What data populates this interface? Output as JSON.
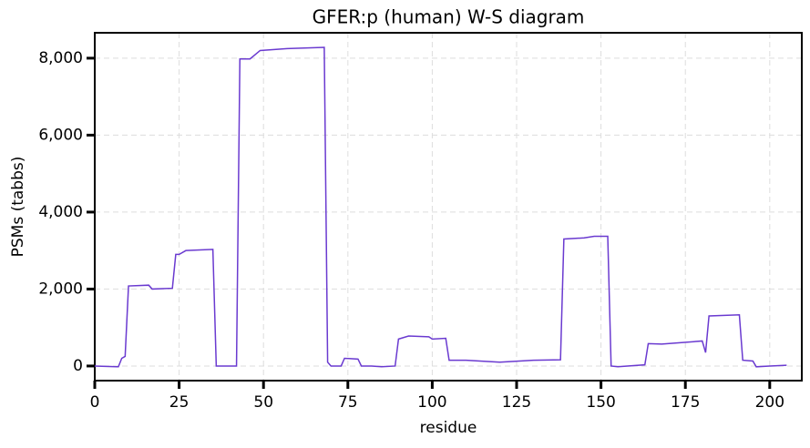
{
  "chart_data": {
    "type": "line",
    "title": "GFER:p (human) W-S diagram",
    "xlabel": "residue",
    "ylabel": "PSMs (tabbs)",
    "x": [
      0,
      7,
      8,
      9,
      10,
      16,
      17,
      23,
      24,
      25,
      27,
      35,
      36,
      42,
      43,
      46,
      49,
      57,
      68,
      69,
      70,
      73,
      74,
      78,
      79,
      82,
      85,
      89,
      90,
      93,
      99,
      100,
      104,
      105,
      110,
      120,
      130,
      138,
      139,
      145,
      148,
      152,
      153,
      155,
      163,
      164,
      168,
      180,
      181,
      182,
      191,
      192,
      195,
      196,
      200,
      205
    ],
    "series": [
      {
        "name": "PSMs",
        "color": "#6a3ad0",
        "values": [
          0,
          -20,
          200,
          250,
          2080,
          2100,
          2000,
          2020,
          2900,
          2900,
          3000,
          3030,
          0,
          0,
          7980,
          7980,
          8200,
          8250,
          8280,
          100,
          0,
          0,
          200,
          180,
          0,
          0,
          -20,
          0,
          700,
          780,
          760,
          700,
          720,
          150,
          150,
          100,
          150,
          160,
          3300,
          3330,
          3370,
          3370,
          0,
          -20,
          30,
          580,
          570,
          650,
          350,
          1300,
          1330,
          150,
          130,
          -20,
          0,
          20
        ]
      }
    ],
    "xlim": [
      0,
      209.5
    ],
    "ylim": [
      -380,
      8660
    ],
    "xticks": [
      0,
      25,
      50,
      75,
      100,
      125,
      150,
      175,
      200
    ],
    "yticks": [
      0,
      {
        "value": 2000,
        "label": "2,000"
      },
      {
        "value": 4000,
        "label": "4,000"
      },
      {
        "value": 6000,
        "label": "6,000"
      },
      {
        "value": 8000,
        "label": "8,000"
      }
    ],
    "grid": true
  }
}
